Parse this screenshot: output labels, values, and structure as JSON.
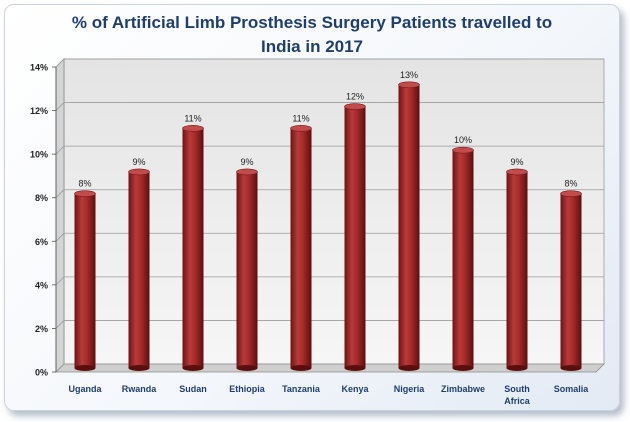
{
  "chart_data": {
    "type": "bar",
    "title_lines": [
      "% of Artificial Limb Prosthesis Surgery Patients travelled to",
      "India in 2017"
    ],
    "categories": [
      [
        "Uganda"
      ],
      [
        "Rwanda"
      ],
      [
        "Sudan"
      ],
      [
        "Ethiopia"
      ],
      [
        "Tanzania"
      ],
      [
        "Kenya"
      ],
      [
        "Nigeria"
      ],
      [
        "Zimbabwe"
      ],
      [
        "South",
        "Africa"
      ],
      [
        "Somalia"
      ]
    ],
    "values": [
      8,
      9,
      11,
      9,
      11,
      12,
      13,
      10,
      9,
      8
    ],
    "value_labels": [
      "8%",
      "9%",
      "11%",
      "9%",
      "11%",
      "12%",
      "13%",
      "10%",
      "9%",
      "8%"
    ],
    "y_ticks": [
      0,
      2,
      4,
      6,
      8,
      10,
      12,
      14
    ],
    "y_tick_labels": [
      "0%",
      "2%",
      "4%",
      "6%",
      "8%",
      "10%",
      "12%",
      "14%"
    ],
    "ylim": [
      0,
      14
    ],
    "grid": true,
    "xlabel": "",
    "ylabel": "",
    "colors": {
      "bar": "#a52a2a",
      "bar_dark": "#6e1414",
      "title": "#1f3e6e",
      "axis_label": "#1f3e6e"
    }
  }
}
